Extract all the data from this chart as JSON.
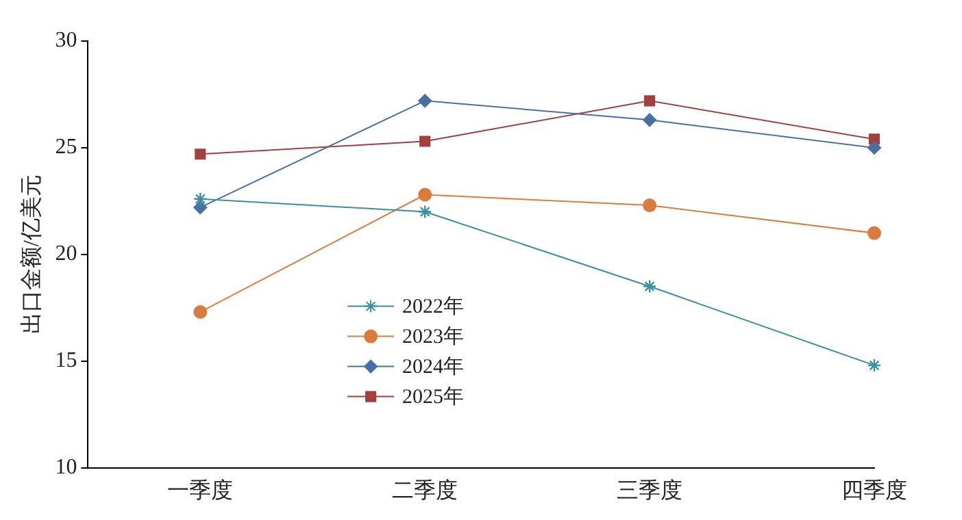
{
  "chart_data": {
    "type": "line",
    "ylabel": "出口金额/亿美元",
    "categories": [
      "一季度",
      "二季度",
      "三季度",
      "四季度"
    ],
    "ylim": [
      10,
      30
    ],
    "yticks": [
      10,
      15,
      20,
      25,
      30
    ],
    "grid": false,
    "legend": "bottom left",
    "line_style": "solid",
    "series": [
      {
        "name": "2022年",
        "color": "#3a8fa0",
        "marker": "cross",
        "values": [
          22.6,
          22.0,
          18.5,
          14.8
        ]
      },
      {
        "name": "2023年",
        "color": "#d97c3e",
        "marker": "circle",
        "values": [
          17.3,
          22.8,
          22.3,
          21.0
        ]
      },
      {
        "name": "2024年",
        "color": "#4a6fa5",
        "marker": "diamond",
        "values": [
          22.2,
          27.2,
          26.3,
          25.0
        ]
      },
      {
        "name": "2025年",
        "color": "#a23f3f",
        "marker": "square",
        "values": [
          24.7,
          25.3,
          27.2,
          25.4
        ]
      }
    ]
  }
}
